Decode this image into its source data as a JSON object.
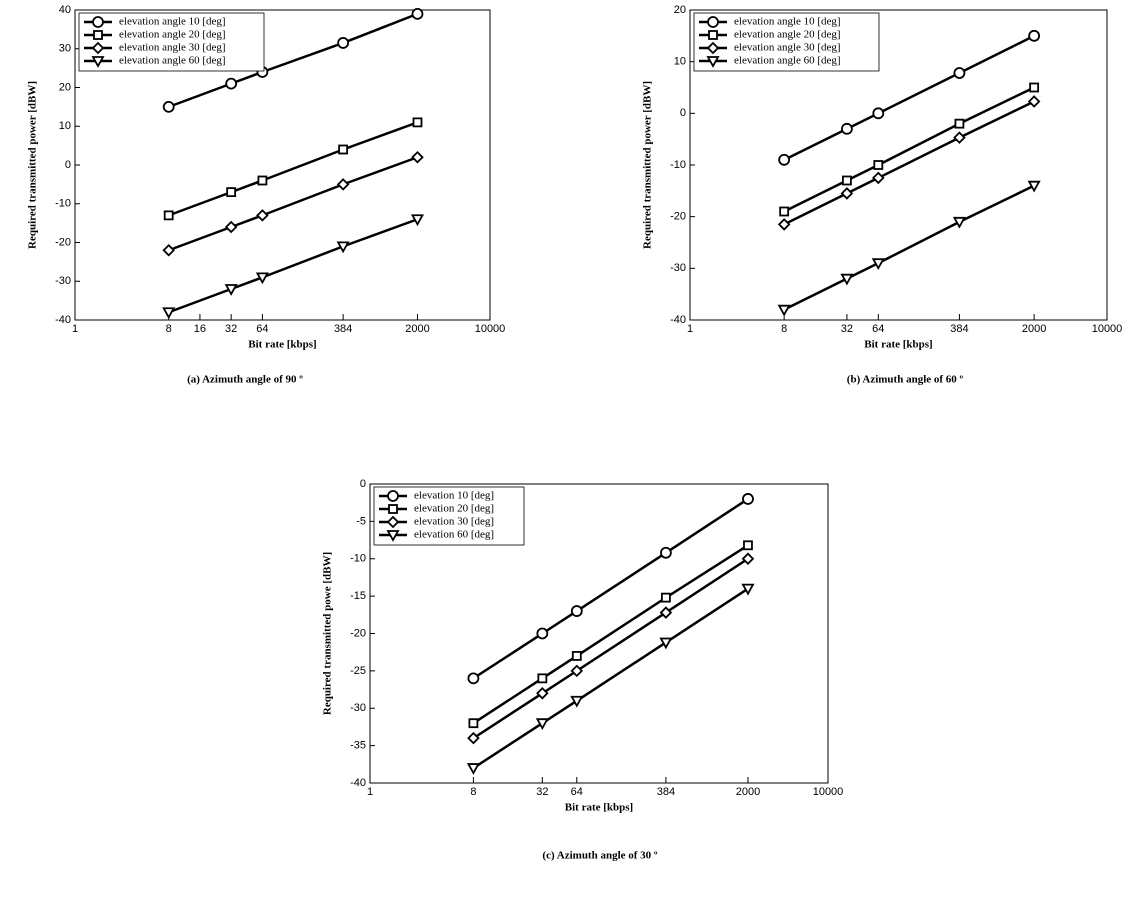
{
  "chart_data": [
    {
      "type": "line",
      "caption": "(a) Azimuth angle of 90 º",
      "xlabel": "Bit rate [kbps]",
      "ylabel": "Required transmitted power [dBW]",
      "x": [
        8,
        32,
        64,
        384,
        2000
      ],
      "xscale": "log",
      "xlim": [
        1,
        10000
      ],
      "xticks": [
        1,
        8,
        16,
        32,
        64,
        384,
        2000,
        10000
      ],
      "ylim": [
        -40,
        40
      ],
      "yticks": [
        -40,
        -30,
        -20,
        -10,
        0,
        10,
        20,
        30,
        40
      ],
      "legend": "upper left",
      "series": [
        {
          "name": "elevation angle 10 [deg]",
          "color": "#000000",
          "marker": "circle",
          "values": [
            15,
            21,
            24,
            31.5,
            39
          ]
        },
        {
          "name": "elevation angle 20 [deg]",
          "color": "#000000",
          "marker": "square",
          "values": [
            -13,
            -7,
            -4,
            4,
            11
          ]
        },
        {
          "name": "elevation angle 30 [deg]",
          "color": "#000000",
          "marker": "diamond",
          "values": [
            -22,
            -16,
            -13,
            -5,
            2
          ]
        },
        {
          "name": "elevation angle 60 [deg]",
          "color": "#000000",
          "marker": "triangle-down",
          "values": [
            -38,
            -32,
            -29,
            -21,
            -14
          ]
        }
      ]
    },
    {
      "type": "line",
      "caption": "(b) Azimuth angle of 60 º",
      "xlabel": "Bit rate [kbps]",
      "ylabel": "Required transmitted power [dBW]",
      "x": [
        8,
        32,
        64,
        384,
        2000
      ],
      "xscale": "log",
      "xlim": [
        1,
        10000
      ],
      "xticks": [
        1,
        8,
        32,
        64,
        384,
        2000,
        10000
      ],
      "ylim": [
        -40,
        20
      ],
      "yticks": [
        -40,
        -30,
        -20,
        -10,
        0,
        10,
        20
      ],
      "legend": "upper left",
      "series": [
        {
          "name": "elevation angle 10 [deg]",
          "color": "#000000",
          "marker": "circle",
          "values": [
            -9,
            -3,
            0,
            7.8,
            15
          ]
        },
        {
          "name": "elevation angle 20 [deg]",
          "color": "#000000",
          "marker": "square",
          "values": [
            -19,
            -13,
            -10,
            -2,
            5
          ]
        },
        {
          "name": "elevation angle 30 [deg]",
          "color": "#000000",
          "marker": "diamond",
          "values": [
            -21.5,
            -15.5,
            -12.5,
            -4.7,
            2.3
          ]
        },
        {
          "name": "elevation angle 60 [deg]",
          "color": "#000000",
          "marker": "triangle-down",
          "values": [
            -38,
            -32,
            -29,
            -21,
            -14
          ]
        }
      ]
    },
    {
      "type": "line",
      "caption": "(c) Azimuth angle of 30 º",
      "xlabel": "Bit rate [kbps]",
      "ylabel": "Required transmitted powe [dBW]",
      "x": [
        8,
        32,
        64,
        384,
        2000
      ],
      "xscale": "log",
      "xlim": [
        1,
        10000
      ],
      "xticks": [
        1,
        8,
        32,
        64,
        384,
        2000,
        10000
      ],
      "ylim": [
        -40,
        0
      ],
      "yticks": [
        -40,
        -35,
        -30,
        -25,
        -20,
        -15,
        -10,
        -5,
        0
      ],
      "legend": "upper left",
      "series": [
        {
          "name": "elevation 10 [deg]",
          "color": "#000000",
          "marker": "circle",
          "values": [
            -26,
            -20,
            -17,
            -9.2,
            -2
          ]
        },
        {
          "name": "elevation 20 [deg]",
          "color": "#000000",
          "marker": "square",
          "values": [
            -32,
            -26,
            -23,
            -15.2,
            -8.2
          ]
        },
        {
          "name": "elevation 30 [deg]",
          "color": "#000000",
          "marker": "diamond",
          "values": [
            -34,
            -28,
            -25,
            -17.2,
            -10
          ]
        },
        {
          "name": "elevation 60 [deg]",
          "color": "#000000",
          "marker": "triangle-down",
          "values": [
            -38,
            -32,
            -29,
            -21.2,
            -14
          ]
        }
      ]
    }
  ]
}
